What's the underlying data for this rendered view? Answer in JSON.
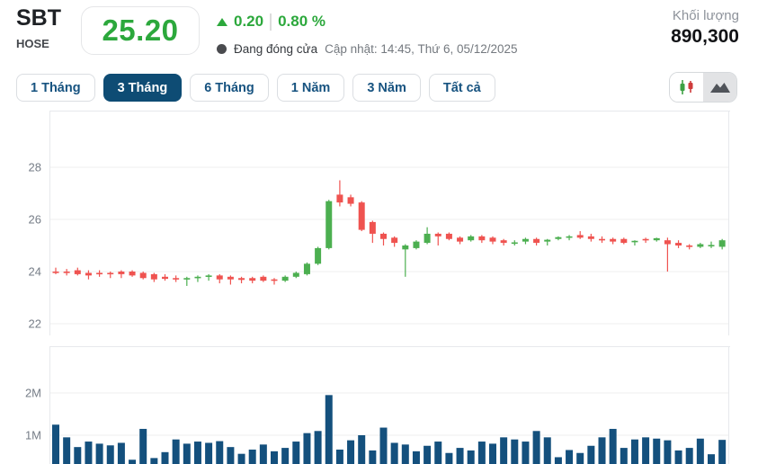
{
  "header": {
    "ticker": "SBT",
    "exchange": "HOSE",
    "price": "25.20",
    "change": "0.20",
    "change_percent": "0.80 %",
    "status_text": "Đang đóng cửa",
    "updated_text": "Cập nhật: 14:45, Thứ 6, 05/12/2025",
    "volume_label": "Khối lượng",
    "volume_value": "890,300"
  },
  "tabs": {
    "items": [
      {
        "label": "1 Tháng",
        "active": false
      },
      {
        "label": "3 Tháng",
        "active": true
      },
      {
        "label": "6 Tháng",
        "active": false
      },
      {
        "label": "1 Năm",
        "active": false
      },
      {
        "label": "3 Năm",
        "active": false
      },
      {
        "label": "Tất cả",
        "active": false
      }
    ]
  },
  "chart_type_toggle": {
    "options": [
      {
        "icon": "candlestick-icon",
        "highlighted": false
      },
      {
        "icon": "mountain-icon",
        "highlighted": true
      }
    ]
  },
  "colors": {
    "accent_green": "#2ca83c",
    "candle_up": "#4caf50",
    "candle_down": "#ef5350",
    "volume_bar": "#14507d",
    "tab_active_bg": "#0e4c74",
    "grid_line": "#efefef",
    "panel_border": "#e7e9ec",
    "axis_label": "#767d87"
  },
  "chart_data": {
    "type": "candlestick",
    "title": "SBT 3-month daily price and volume",
    "legend": "none",
    "grid": true,
    "price_axis": {
      "ticks": [
        28,
        26,
        24,
        22
      ],
      "range": [
        21.6,
        30.2
      ]
    },
    "volume_axis": {
      "ticks": [
        2,
        1
      ],
      "tick_labels": [
        "2M",
        "1M"
      ],
      "unit": "millions"
    },
    "candles_ohlc": [
      [
        24.0,
        24.15,
        23.9,
        23.95
      ],
      [
        24.0,
        24.1,
        23.85,
        23.95
      ],
      [
        24.05,
        24.15,
        23.85,
        23.9
      ],
      [
        23.95,
        24.05,
        23.7,
        23.85
      ],
      [
        23.95,
        24.05,
        23.8,
        23.9
      ],
      [
        23.95,
        24.0,
        23.75,
        23.9
      ],
      [
        24.0,
        24.05,
        23.75,
        23.9
      ],
      [
        24.0,
        24.05,
        23.8,
        23.85
      ],
      [
        23.95,
        24.0,
        23.7,
        23.75
      ],
      [
        23.9,
        23.95,
        23.6,
        23.7
      ],
      [
        23.8,
        23.9,
        23.65,
        23.72
      ],
      [
        23.75,
        23.85,
        23.6,
        23.7
      ],
      [
        23.7,
        23.8,
        23.45,
        23.75
      ],
      [
        23.75,
        23.85,
        23.6,
        23.8
      ],
      [
        23.8,
        23.9,
        23.65,
        23.85
      ],
      [
        23.85,
        23.9,
        23.55,
        23.7
      ],
      [
        23.8,
        23.85,
        23.5,
        23.7
      ],
      [
        23.75,
        23.8,
        23.55,
        23.68
      ],
      [
        23.75,
        23.8,
        23.55,
        23.65
      ],
      [
        23.8,
        23.85,
        23.6,
        23.65
      ],
      [
        23.7,
        23.75,
        23.5,
        23.65
      ],
      [
        23.65,
        23.85,
        23.6,
        23.8
      ],
      [
        23.8,
        24.0,
        23.75,
        23.95
      ],
      [
        23.9,
        24.35,
        23.85,
        24.3
      ],
      [
        24.3,
        24.95,
        24.25,
        24.9
      ],
      [
        24.9,
        26.75,
        24.85,
        26.7
      ],
      [
        26.95,
        27.5,
        26.5,
        26.65
      ],
      [
        26.85,
        26.95,
        26.5,
        26.6
      ],
      [
        26.65,
        26.7,
        25.55,
        25.6
      ],
      [
        25.9,
        25.95,
        25.1,
        25.45
      ],
      [
        25.45,
        25.5,
        25.0,
        25.25
      ],
      [
        25.3,
        25.35,
        24.95,
        25.1
      ],
      [
        24.85,
        25.05,
        23.8,
        25.0
      ],
      [
        24.9,
        25.2,
        24.85,
        25.15
      ],
      [
        25.1,
        25.7,
        25.05,
        25.45
      ],
      [
        25.45,
        25.5,
        25.0,
        25.35
      ],
      [
        25.45,
        25.5,
        25.2,
        25.25
      ],
      [
        25.3,
        25.35,
        25.05,
        25.15
      ],
      [
        25.2,
        25.4,
        25.15,
        25.35
      ],
      [
        25.35,
        25.4,
        25.1,
        25.2
      ],
      [
        25.3,
        25.35,
        25.05,
        25.15
      ],
      [
        25.2,
        25.25,
        25.0,
        25.1
      ],
      [
        25.1,
        25.2,
        25.0,
        25.12
      ],
      [
        25.15,
        25.3,
        25.05,
        25.25
      ],
      [
        25.25,
        25.3,
        25.0,
        25.1
      ],
      [
        25.15,
        25.25,
        25.0,
        25.22
      ],
      [
        25.25,
        25.35,
        25.2,
        25.32
      ],
      [
        25.3,
        25.4,
        25.2,
        25.35
      ],
      [
        25.4,
        25.55,
        25.25,
        25.3
      ],
      [
        25.35,
        25.45,
        25.15,
        25.25
      ],
      [
        25.25,
        25.35,
        25.1,
        25.2
      ],
      [
        25.25,
        25.3,
        25.05,
        25.15
      ],
      [
        25.25,
        25.3,
        25.05,
        25.1
      ],
      [
        25.15,
        25.2,
        25.0,
        25.18
      ],
      [
        25.25,
        25.3,
        25.1,
        25.2
      ],
      [
        25.2,
        25.3,
        25.15,
        25.28
      ],
      [
        25.2,
        25.3,
        24.0,
        25.05
      ],
      [
        25.1,
        25.2,
        24.9,
        25.0
      ],
      [
        25.0,
        25.05,
        24.85,
        24.95
      ],
      [
        24.95,
        25.1,
        24.9,
        25.05
      ],
      [
        25.0,
        25.15,
        24.9,
        25.02
      ],
      [
        24.95,
        25.25,
        24.85,
        25.2
      ]
    ],
    "volumes_millions": [
      1.25,
      0.95,
      0.72,
      0.85,
      0.8,
      0.76,
      0.82,
      0.42,
      1.15,
      0.46,
      0.6,
      0.9,
      0.8,
      0.85,
      0.82,
      0.86,
      0.72,
      0.56,
      0.66,
      0.78,
      0.62,
      0.7,
      0.85,
      1.05,
      1.1,
      1.95,
      0.66,
      0.88,
      1.0,
      0.64,
      1.18,
      0.82,
      0.78,
      0.62,
      0.75,
      0.85,
      0.58,
      0.7,
      0.64,
      0.85,
      0.8,
      0.95,
      0.9,
      0.85,
      1.1,
      0.95,
      0.48,
      0.65,
      0.58,
      0.75,
      0.95,
      1.15,
      0.7,
      0.9,
      0.95,
      0.92,
      0.88,
      0.64,
      0.7,
      0.92,
      0.55,
      0.89
    ]
  }
}
